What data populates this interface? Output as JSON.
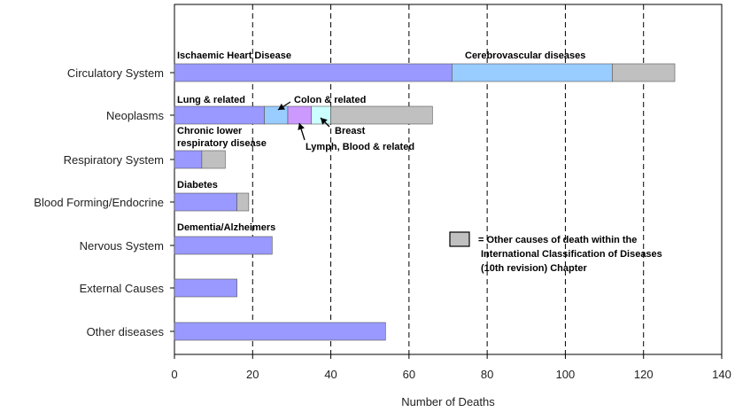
{
  "chart_data": {
    "type": "bar",
    "orientation": "horizontal",
    "stacked": true,
    "xlabel": "Number of Deaths",
    "xlim": [
      0,
      140
    ],
    "xticks": [
      0,
      20,
      40,
      60,
      80,
      100,
      120,
      140
    ],
    "categories": [
      "Circulatory System",
      "Neoplasms",
      "Respiratory System",
      "Blood Forming/Endocrine",
      "Nervous System",
      "External Causes",
      "Other diseases"
    ],
    "bars": [
      {
        "category": "Circulatory System",
        "segments": [
          {
            "label": "Ischaemic Heart Disease",
            "value": 71,
            "color": "#9999ff"
          },
          {
            "label": "Cerebrovascular diseases",
            "value": 41,
            "color": "#99ccff"
          },
          {
            "label": "Other",
            "value": 16,
            "color": "#c0c0c0"
          }
        ]
      },
      {
        "category": "Neoplasms",
        "segments": [
          {
            "label": "Lung & related",
            "value": 23,
            "color": "#9999ff"
          },
          {
            "label": "Colon & related",
            "value": 6,
            "color": "#99ccff"
          },
          {
            "label": "Lymph, Blood & related",
            "value": 6,
            "color": "#cc99ff"
          },
          {
            "label": "Breast",
            "value": 5,
            "color": "#ccffff"
          },
          {
            "label": "Other",
            "value": 26,
            "color": "#c0c0c0"
          }
        ]
      },
      {
        "category": "Respiratory System",
        "segments": [
          {
            "label": "Chronic lower respiratory disease",
            "value": 7,
            "color": "#9999ff"
          },
          {
            "label": "Other",
            "value": 6,
            "color": "#c0c0c0"
          }
        ]
      },
      {
        "category": "Blood Forming/Endocrine",
        "segments": [
          {
            "label": "Diabetes",
            "value": 16,
            "color": "#9999ff"
          },
          {
            "label": "Other",
            "value": 3,
            "color": "#c0c0c0"
          }
        ]
      },
      {
        "category": "Nervous System",
        "segments": [
          {
            "label": "Dementia/Alzheimers",
            "value": 25,
            "color": "#9999ff"
          }
        ]
      },
      {
        "category": "External Causes",
        "segments": [
          {
            "label": "",
            "value": 16,
            "color": "#9999ff"
          }
        ]
      },
      {
        "category": "Other diseases",
        "segments": [
          {
            "label": "",
            "value": 54,
            "color": "#9999ff"
          }
        ]
      }
    ],
    "annotations": [
      {
        "text": "Ischaemic Heart Disease"
      },
      {
        "text": "Cerebrovascular diseases"
      },
      {
        "text": "Lung & related"
      },
      {
        "text": "Colon & related"
      },
      {
        "text": "Breast"
      },
      {
        "text": "Lymph, Blood & related"
      },
      {
        "text": "Chronic lower"
      },
      {
        "text": "respiratory disease"
      },
      {
        "text": "Diabetes"
      },
      {
        "text": "Dementia/Alzheimers"
      }
    ],
    "legend": {
      "placement": "right",
      "color": "#c0c0c0",
      "lines": [
        "= Other causes of death within the",
        "International Classification of Diseases",
        "(10th revision) Chapter"
      ]
    },
    "grid": {
      "vertical": true,
      "style": "dashed"
    }
  }
}
